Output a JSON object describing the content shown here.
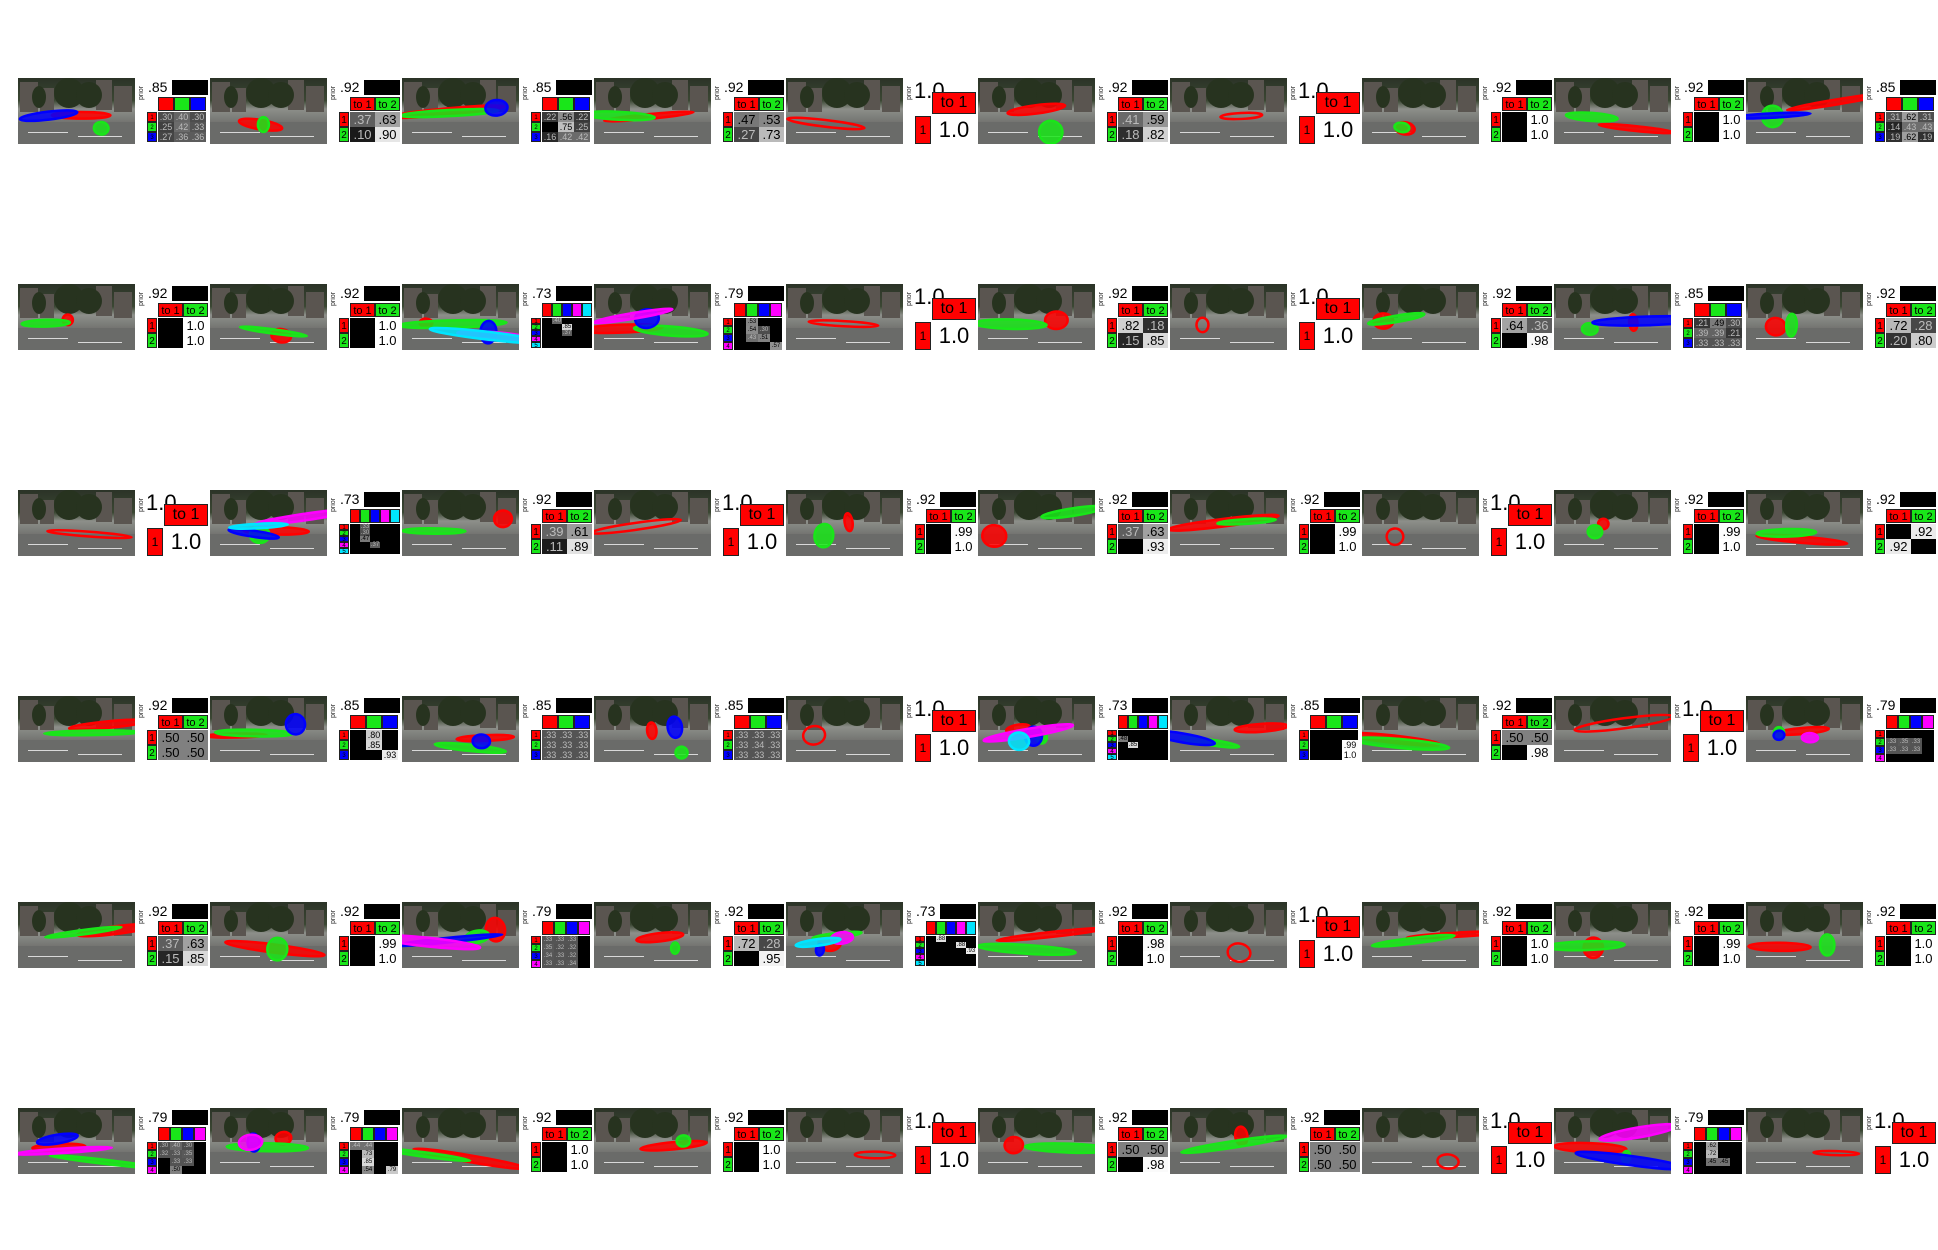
{
  "colors": {
    "c1": "#ff0000",
    "c2": "#19e619",
    "c3": "#0000ff",
    "c4": "#ff00ff",
    "c5": "#00e5ff"
  },
  "labels": {
    "prior": "prior",
    "to1": "to 1",
    "to2": "to 2",
    "r1": "1",
    "r2": "2",
    "r3": "3",
    "r4": "4",
    "r5": "5"
  },
  "grid": {
    "columns": 10,
    "rows": 6
  },
  "tiles": [
    {
      "k": 3,
      "prior": ".85",
      "cells": [
        ".30",
        ".40",
        ".30",
        ".25",
        ".42",
        ".33",
        ".27",
        ".36",
        ".36"
      ]
    },
    {
      "k": 2,
      "prior": ".92",
      "cells": [
        ".37",
        ".63",
        ".10",
        ".90"
      ]
    },
    {
      "k": 3,
      "prior": ".85",
      "cells": [
        ".22",
        ".56",
        ".22",
        "",
        ".75",
        ".25",
        ".16",
        ".42",
        ".42"
      ]
    },
    {
      "k": 2,
      "prior": ".92",
      "cells": [
        ".47",
        ".53",
        ".27",
        ".73"
      ]
    },
    {
      "k": 1,
      "prior": "1.0",
      "value": "1.0"
    },
    {
      "k": 2,
      "prior": ".92",
      "cells": [
        ".41",
        ".59",
        ".18",
        ".82"
      ]
    },
    {
      "k": 1,
      "prior": "1.0",
      "value": "1.0"
    },
    {
      "k": 2,
      "prior": ".92",
      "cells": [
        "",
        "1.0",
        "",
        "1.0"
      ]
    },
    {
      "k": 2,
      "prior": ".92",
      "cells": [
        "",
        "1.0",
        "",
        "1.0"
      ]
    },
    {
      "k": 3,
      "prior": ".85",
      "cells": [
        ".31",
        ".62",
        ".31",
        ".14",
        ".43",
        ".43",
        ".19",
        ".62",
        ".19"
      ]
    },
    {
      "k": 2,
      "prior": ".92",
      "cells": [
        "",
        "1.0",
        "",
        "1.0"
      ]
    },
    {
      "k": 2,
      "prior": ".92",
      "cells": [
        "",
        "1.0",
        "",
        "1.0"
      ]
    },
    {
      "k": 5,
      "prior": ".73",
      "cells": [
        "",
        ".40",
        "",
        "",
        "",
        "",
        "",
        ".85",
        "",
        "",
        "",
        "",
        ".37",
        "",
        "",
        "",
        "",
        "",
        "",
        "",
        "",
        "",
        "",
        "",
        ""
      ]
    },
    {
      "k": 4,
      "prior": ".79",
      "cells": [
        "",
        ".53",
        "",
        "",
        "",
        ".54",
        ".30",
        "",
        "",
        ".43",
        ".51",
        "",
        "",
        "",
        "",
        ".57"
      ]
    },
    {
      "k": 1,
      "prior": "1.0",
      "value": "1.0"
    },
    {
      "k": 2,
      "prior": ".92",
      "cells": [
        ".82",
        ".18",
        ".15",
        ".85"
      ]
    },
    {
      "k": 1,
      "prior": "1.0",
      "value": "1.0"
    },
    {
      "k": 2,
      "prior": ".92",
      "cells": [
        ".64",
        ".36",
        "",
        ".98"
      ]
    },
    {
      "k": 3,
      "prior": ".85",
      "cells": [
        ".21",
        ".49",
        ".30",
        ".39",
        ".39",
        ".21",
        ".33",
        ".33",
        ".33"
      ]
    },
    {
      "k": 2,
      "prior": ".92",
      "cells": [
        ".72",
        ".28",
        ".20",
        ".80"
      ]
    },
    {
      "k": 1,
      "prior": "1.0",
      "value": "1.0"
    },
    {
      "k": 5,
      "prior": ".73",
      "cells": [
        "",
        ".33",
        "",
        "",
        "",
        "",
        ".30",
        "",
        "",
        "",
        "",
        ".47",
        "",
        "",
        "",
        "",
        "",
        ".37",
        "",
        "",
        "",
        "",
        "",
        "",
        ""
      ]
    },
    {
      "k": 2,
      "prior": ".92",
      "cells": [
        ".39",
        ".61",
        ".11",
        ".89"
      ]
    },
    {
      "k": 1,
      "prior": "1.0",
      "value": "1.0"
    },
    {
      "k": 2,
      "prior": ".92",
      "cells": [
        "",
        ".99",
        "",
        "1.0"
      ]
    },
    {
      "k": 2,
      "prior": ".92",
      "cells": [
        ".37",
        ".63",
        "",
        ".93"
      ]
    },
    {
      "k": 2,
      "prior": ".92",
      "cells": [
        "",
        ".99",
        "",
        "1.0"
      ]
    },
    {
      "k": 1,
      "prior": "1.0",
      "value": "1.0"
    },
    {
      "k": 2,
      "prior": ".92",
      "cells": [
        "",
        ".99",
        "",
        "1.0"
      ]
    },
    {
      "k": 2,
      "prior": ".92",
      "cells": [
        "",
        ".92",
        ".92",
        ""
      ]
    },
    {
      "k": 2,
      "prior": ".92",
      "cells": [
        ".50",
        ".50",
        ".50",
        ".50"
      ]
    },
    {
      "k": 3,
      "prior": ".85",
      "cells": [
        "",
        ".80",
        "",
        "",
        ".85",
        "",
        "",
        "",
        ".93"
      ]
    },
    {
      "k": 3,
      "prior": ".85",
      "cells": [
        ".33",
        ".33",
        ".33",
        ".33",
        ".33",
        ".33",
        ".33",
        ".33",
        ".33"
      ]
    },
    {
      "k": 3,
      "prior": ".85",
      "cells": [
        ".33",
        ".33",
        ".33",
        ".33",
        ".34",
        ".33",
        ".33",
        ".33",
        ".33"
      ]
    },
    {
      "k": 1,
      "prior": "1.0",
      "value": "1.0"
    },
    {
      "k": 5,
      "prior": ".73",
      "cells": [
        "",
        "",
        "",
        "",
        "",
        ".48",
        "",
        "",
        "",
        "",
        "",
        ".85",
        "",
        "",
        "",
        "",
        "",
        "",
        "",
        "",
        "",
        "",
        "",
        "",
        ""
      ]
    },
    {
      "k": 3,
      "prior": ".85",
      "cells": [
        "",
        "",
        "",
        "",
        "",
        ".99",
        "",
        "",
        "1.0"
      ]
    },
    {
      "k": 2,
      "prior": ".92",
      "cells": [
        ".50",
        ".50",
        "",
        ".98"
      ]
    },
    {
      "k": 1,
      "prior": "1.0",
      "value": "1.0"
    },
    {
      "k": 4,
      "prior": ".79",
      "cells": [
        "",
        "",
        "",
        "",
        ".33",
        ".35",
        ".33",
        "",
        ".33",
        ".33",
        ".33",
        "",
        "",
        "",
        "",
        ""
      ]
    },
    {
      "k": 2,
      "prior": ".92",
      "cells": [
        ".37",
        ".63",
        ".15",
        ".85"
      ]
    },
    {
      "k": 2,
      "prior": ".92",
      "cells": [
        "",
        ".99",
        "",
        "1.0"
      ]
    },
    {
      "k": 4,
      "prior": ".79",
      "cells": [
        ".33",
        ".33",
        ".33",
        "",
        ".35",
        ".32",
        ".32",
        "",
        ".34",
        ".33",
        ".32",
        "",
        ".33",
        ".33",
        ".34",
        ""
      ]
    },
    {
      "k": 2,
      "prior": ".92",
      "cells": [
        ".72",
        ".28",
        "",
        ".95"
      ]
    },
    {
      "k": 5,
      "prior": ".73",
      "cells": [
        "",
        ".88",
        "",
        "",
        "",
        "",
        "",
        "",
        ".88",
        "",
        "",
        "",
        "",
        "",
        ".93",
        "",
        "",
        "",
        "",
        "",
        "",
        "",
        "",
        "",
        ""
      ]
    },
    {
      "k": 2,
      "prior": ".92",
      "cells": [
        "",
        ".98",
        "",
        "1.0"
      ]
    },
    {
      "k": 1,
      "prior": "1.0",
      "value": "1.0"
    },
    {
      "k": 2,
      "prior": ".92",
      "cells": [
        "",
        "1.0",
        "",
        "1.0"
      ]
    },
    {
      "k": 2,
      "prior": ".92",
      "cells": [
        "",
        ".99",
        "",
        "1.0"
      ]
    },
    {
      "k": 2,
      "prior": ".92",
      "cells": [
        "",
        "1.0",
        "",
        "1.0"
      ]
    },
    {
      "k": 4,
      "prior": ".79",
      "cells": [
        ".30",
        ".40",
        ".30",
        "",
        ".32",
        ".33",
        ".35",
        "",
        "",
        ".33",
        ".33",
        "",
        "",
        ".50",
        "",
        ""
      ]
    },
    {
      "k": 4,
      "prior": ".79",
      "cells": [
        ".44",
        ".44",
        "",
        "",
        "",
        ".73",
        "",
        "",
        "",
        ".85",
        "",
        "",
        "",
        ".54",
        "",
        ".79"
      ]
    },
    {
      "k": 2,
      "prior": ".92",
      "cells": [
        "",
        "1.0",
        "",
        "1.0"
      ]
    },
    {
      "k": 2,
      "prior": ".92",
      "cells": [
        "",
        "1.0",
        "",
        "1.0"
      ]
    },
    {
      "k": 1,
      "prior": "1.0",
      "value": "1.0"
    },
    {
      "k": 2,
      "prior": ".92",
      "cells": [
        ".50",
        ".50",
        "",
        ".98"
      ]
    },
    {
      "k": 2,
      "prior": ".92",
      "cells": [
        ".50",
        ".50",
        ".50",
        ".50"
      ]
    },
    {
      "k": 1,
      "prior": "1.0",
      "value": "1.0"
    },
    {
      "k": 4,
      "prior": ".79",
      "cells": [
        "",
        ".62",
        "",
        "",
        "",
        ".72",
        "",
        "",
        "",
        ".45",
        ".45",
        "",
        "",
        "",
        "",
        ""
      ]
    },
    {
      "k": 1,
      "prior": "1.0",
      "value": "1.0"
    }
  ]
}
